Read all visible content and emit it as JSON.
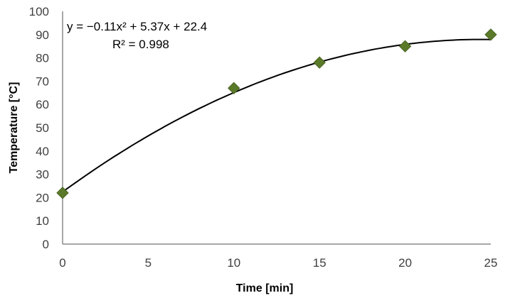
{
  "chart_data": {
    "type": "scatter",
    "title": "",
    "xlabel": "Time [min]",
    "ylabel": "Temperature [°C]",
    "xlim": [
      0,
      25
    ],
    "ylim": [
      0,
      100
    ],
    "x_ticks": [
      0,
      5,
      10,
      15,
      20,
      25
    ],
    "y_ticks": [
      0,
      10,
      20,
      30,
      40,
      50,
      60,
      70,
      80,
      90,
      100
    ],
    "grid": false,
    "legend": null,
    "series": [
      {
        "name": "Temperature",
        "marker": "diamond",
        "color": "#5a7a2a",
        "x": [
          0,
          10,
          15,
          20,
          25
        ],
        "y": [
          22,
          67,
          78,
          85,
          90
        ]
      }
    ],
    "trendline": {
      "type": "polynomial",
      "order": 2,
      "coefficients": {
        "a": -0.11,
        "b": 5.37,
        "c": 22.4
      },
      "color": "#000000",
      "equation_label": "y = −0.11x² + 5.37x + 22.4",
      "r2_label": "R² = 0.998"
    },
    "annotations": [
      "y = −0.11x² + 5.37x + 22.4",
      "R² = 0.998"
    ]
  },
  "colors": {
    "marker": "#5a7a2a",
    "marker_edge": "#4a6522",
    "axis": "#8c8c8c",
    "tick_text": "#404040",
    "trendline": "#000000"
  }
}
